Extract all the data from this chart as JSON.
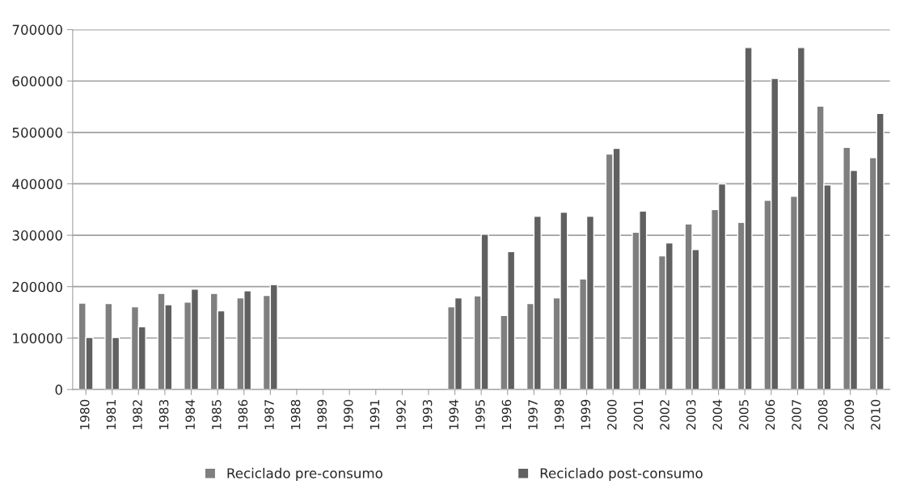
{
  "chart_data": {
    "type": "bar",
    "categories": [
      "1980",
      "1981",
      "1982",
      "1983",
      "1984",
      "1985",
      "1986",
      "1987",
      "1988",
      "1989",
      "1990",
      "1991",
      "1992",
      "1993",
      "1994",
      "1995",
      "1996",
      "1997",
      "1998",
      "1999",
      "2000",
      "2001",
      "2002",
      "2003",
      "2004",
      "2005",
      "2006",
      "2007",
      "2008",
      "2009",
      "2010"
    ],
    "series": [
      {
        "name": "Reciclado pre-consumo",
        "color": "#7f7f7f",
        "values": [
          168000,
          167000,
          161000,
          187000,
          170000,
          187000,
          178000,
          183000,
          null,
          null,
          null,
          null,
          null,
          null,
          161000,
          182000,
          144000,
          167000,
          178000,
          215000,
          458000,
          306000,
          260000,
          322000,
          350000,
          325000,
          368000,
          376000,
          551000,
          471000,
          451000
        ]
      },
      {
        "name": "Reciclado post-consumo",
        "color": "#606060",
        "values": [
          101000,
          101000,
          122000,
          165000,
          195000,
          153000,
          192000,
          204000,
          null,
          null,
          null,
          null,
          null,
          null,
          178000,
          302000,
          268000,
          337000,
          345000,
          337000,
          469000,
          347000,
          285000,
          272000,
          400000,
          665000,
          605000,
          665000,
          398000,
          426000,
          537000
        ]
      }
    ],
    "ylim": [
      0,
      700000
    ],
    "yticks": [
      0,
      100000,
      200000,
      300000,
      400000,
      500000,
      600000,
      700000
    ],
    "grid": "y",
    "legend": "bottom"
  }
}
